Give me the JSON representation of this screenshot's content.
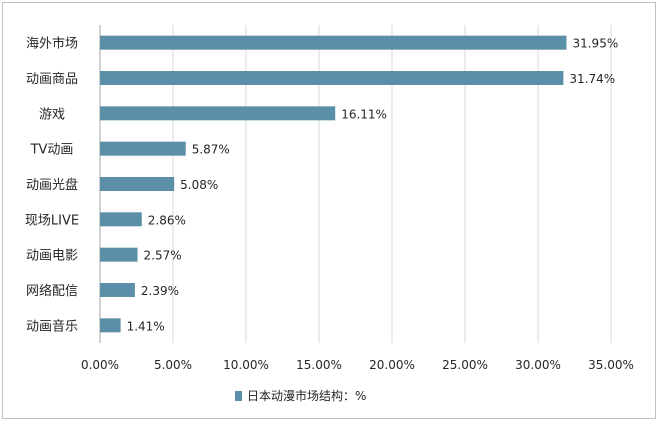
{
  "chart_data": {
    "type": "bar",
    "orientation": "horizontal",
    "categories": [
      "海外市场",
      "动画商品",
      "游戏",
      "TV动画",
      "动画光盘",
      "现场LIVE",
      "动画电影",
      "网络配信",
      "动画音乐"
    ],
    "series": [
      {
        "name": "日本动漫市场结构：%",
        "values": [
          31.95,
          31.74,
          16.11,
          5.87,
          5.08,
          2.86,
          2.57,
          2.39,
          1.41
        ],
        "data_labels": [
          "31.95%",
          "31.74%",
          "16.11%",
          "5.87%",
          "5.08%",
          "2.86%",
          "2.57%",
          "2.39%",
          "1.41%"
        ],
        "color": "#5b8fa8"
      }
    ],
    "xlim": [
      0,
      35
    ],
    "x_ticks": [
      0,
      5,
      10,
      15,
      20,
      25,
      30,
      35
    ],
    "x_tick_labels": [
      "0.00%",
      "5.00%",
      "10.00%",
      "15.00%",
      "20.00%",
      "25.00%",
      "30.00%",
      "35.00%"
    ],
    "grid": true,
    "legend_position": "bottom"
  }
}
